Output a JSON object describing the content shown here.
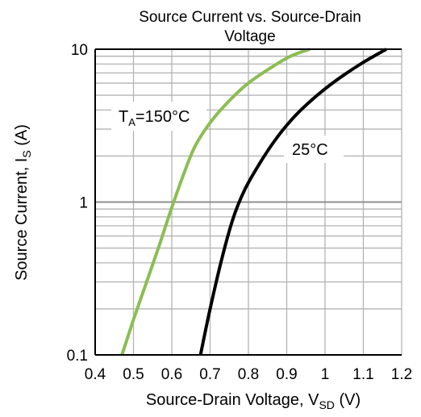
{
  "chart_data": {
    "type": "line",
    "title": [
      "Source Current vs. Source-Drain",
      "Voltage"
    ],
    "xlabel": {
      "main": "Source-Drain Voltage, V",
      "sub": "SD",
      "unit": " (V)"
    },
    "ylabel": {
      "main": "Source Current, I",
      "sub": "S",
      "unit": " (A)"
    },
    "xlim": [
      0.4,
      1.2
    ],
    "ylim": [
      0.1,
      10
    ],
    "yscale": "log",
    "grid": true,
    "x_ticks": [
      0.4,
      0.5,
      0.6,
      0.7,
      0.8,
      0.9,
      1.0,
      1.1,
      1.2
    ],
    "x_tick_labels": [
      "0.4",
      "0.5",
      "0.6",
      "0.7",
      "0.8",
      "0.9",
      "1",
      "1.1",
      "1.2"
    ],
    "y_ticks": [
      0.1,
      1,
      10
    ],
    "y_tick_labels": [
      "0.1",
      "1",
      "10"
    ],
    "series": [
      {
        "name": "TA=150°C",
        "label_main": "T",
        "label_sub": "A",
        "label_rest": "=150°C",
        "color": "#8cbd54",
        "x": [
          0.47,
          0.5,
          0.53,
          0.56,
          0.58,
          0.6,
          0.63,
          0.66,
          0.7,
          0.75,
          0.8,
          0.86,
          0.91,
          0.96
        ],
        "y": [
          0.1,
          0.17,
          0.28,
          0.46,
          0.65,
          0.92,
          1.5,
          2.3,
          3.3,
          4.6,
          6.0,
          7.6,
          9.0,
          10.0
        ]
      },
      {
        "name": "25°C",
        "label_main": "25°C",
        "color": "#000000",
        "x": [
          0.675,
          0.7,
          0.73,
          0.76,
          0.79,
          0.83,
          0.87,
          0.91,
          0.95,
          1.0,
          1.05,
          1.1,
          1.16
        ],
        "y": [
          0.1,
          0.2,
          0.42,
          0.78,
          1.2,
          1.8,
          2.55,
          3.4,
          4.3,
          5.5,
          6.8,
          8.2,
          10.0
        ]
      }
    ]
  }
}
